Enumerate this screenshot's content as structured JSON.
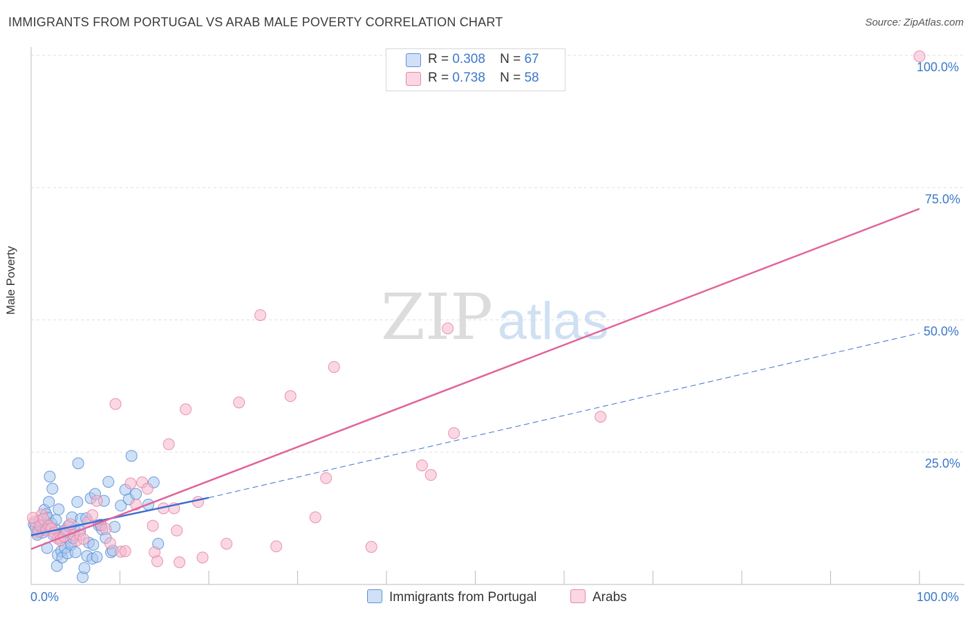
{
  "title": "IMMIGRANTS FROM PORTUGAL VS ARAB MALE POVERTY CORRELATION CHART",
  "source": "Source: ZipAtlas.com",
  "watermark": {
    "zip": "ZIP",
    "atlas": "atlas"
  },
  "legend": {
    "r_label": "R =",
    "n_label": "N =",
    "entries": [
      {
        "r": "0.308",
        "n": "67",
        "color": "#a9c8ef"
      },
      {
        "r": "0.738",
        "n": "58",
        "color": "#f5b7cc"
      }
    ]
  },
  "colors": {
    "blue_fill": "#a9c8ef",
    "blue_stroke": "#5b8fd6",
    "blue_line": "#3a6fd0",
    "pink_fill": "#f5b7cc",
    "pink_stroke": "#e486a6",
    "pink_line": "#e0649a",
    "label_blue": "#3a78c8"
  },
  "chart_data": {
    "type": "scatter",
    "title": "IMMIGRANTS FROM PORTUGAL VS ARAB MALE POVERTY CORRELATION CHART",
    "xlabel": "",
    "ylabel": "Male Poverty",
    "xlim": [
      0,
      100
    ],
    "ylim": [
      0,
      100
    ],
    "x_tick_labels": [
      {
        "value": 0,
        "label": "0.0%"
      },
      {
        "value": 100,
        "label": "100.0%"
      }
    ],
    "y_tick_labels": [
      {
        "value": 25,
        "label": "25.0%"
      },
      {
        "value": 50,
        "label": "50.0%"
      },
      {
        "value": 75,
        "label": "75.0%"
      },
      {
        "value": 100,
        "label": "100.0%"
      }
    ],
    "grid": true,
    "series": [
      {
        "name": "Immigrants from Portugal",
        "R": 0.308,
        "N": 67,
        "trend": {
          "solid": [
            [
              0,
              9.3
            ],
            [
              20,
              16.4
            ]
          ],
          "dashed": [
            [
              20,
              16.4
            ],
            [
              100,
              47.5
            ]
          ]
        },
        "points": [
          [
            0.3,
            11.4
          ],
          [
            0.5,
            10.8
          ],
          [
            0.7,
            9.4
          ],
          [
            0.8,
            10.1
          ],
          [
            1,
            12.1
          ],
          [
            1.2,
            11.2
          ],
          [
            1.3,
            9.8
          ],
          [
            1.5,
            14.1
          ],
          [
            1.6,
            10.5
          ],
          [
            1.7,
            13.3
          ],
          [
            1.8,
            6.9
          ],
          [
            1.9,
            12.6
          ],
          [
            2,
            15.6
          ],
          [
            2.1,
            20.4
          ],
          [
            2.3,
            11.5
          ],
          [
            2.4,
            18.1
          ],
          [
            2.5,
            9.4
          ],
          [
            2.7,
            10.5
          ],
          [
            2.8,
            12.2
          ],
          [
            2.9,
            3.5
          ],
          [
            3,
            5.6
          ],
          [
            3.1,
            14.2
          ],
          [
            3.3,
            8.8
          ],
          [
            3.4,
            6.3
          ],
          [
            3.5,
            5.1
          ],
          [
            3.7,
            10.2
          ],
          [
            3.8,
            6.9
          ],
          [
            3.9,
            9.9
          ],
          [
            4.1,
            5.9
          ],
          [
            4.2,
            11.1
          ],
          [
            4.4,
            8.1
          ],
          [
            4.5,
            7.5
          ],
          [
            4.6,
            12.7
          ],
          [
            4.7,
            8.8
          ],
          [
            4.9,
            10.4
          ],
          [
            5,
            6.1
          ],
          [
            5.2,
            15.6
          ],
          [
            5.3,
            22.9
          ],
          [
            5.5,
            10.1
          ],
          [
            5.6,
            12.4
          ],
          [
            5.8,
            1.4
          ],
          [
            6,
            3.1
          ],
          [
            6.2,
            12.5
          ],
          [
            6.3,
            5.4
          ],
          [
            6.5,
            7.9
          ],
          [
            6.7,
            16.3
          ],
          [
            6.9,
            4.9
          ],
          [
            7,
            7.5
          ],
          [
            7.2,
            17.1
          ],
          [
            7.4,
            5.2
          ],
          [
            7.6,
            11.2
          ],
          [
            7.8,
            11.3
          ],
          [
            8,
            10.4
          ],
          [
            8.2,
            15.8
          ],
          [
            8.4,
            8.8
          ],
          [
            8.7,
            19.4
          ],
          [
            9,
            6.1
          ],
          [
            9.2,
            6.4
          ],
          [
            9.4,
            10.9
          ],
          [
            10.1,
            14.9
          ],
          [
            10.6,
            17.9
          ],
          [
            11,
            16.1
          ],
          [
            11.3,
            24.3
          ],
          [
            11.8,
            17.1
          ],
          [
            13.2,
            15.1
          ],
          [
            13.8,
            19.3
          ],
          [
            14.3,
            7.7
          ]
        ]
      },
      {
        "name": "Arabs",
        "R": 0.738,
        "N": 58,
        "trend": {
          "solid": [
            [
              0,
              6.7
            ],
            [
              100,
              71
            ]
          ]
        },
        "points": [
          [
            0.4,
            11.9
          ],
          [
            0.7,
            9.8
          ],
          [
            1,
            11.1
          ],
          [
            1.2,
            13.2
          ],
          [
            1.4,
            12.4
          ],
          [
            1.7,
            10.2
          ],
          [
            2,
            11.1
          ],
          [
            2.3,
            10.6
          ],
          [
            2.6,
            9.8
          ],
          [
            3,
            8.7
          ],
          [
            3.3,
            8.4
          ],
          [
            3.7,
            9.1
          ],
          [
            4,
            10.4
          ],
          [
            4.4,
            11.4
          ],
          [
            4.8,
            9.3
          ],
          [
            5.1,
            8.3
          ],
          [
            5.5,
            9.4
          ],
          [
            5.9,
            8.6
          ],
          [
            6.4,
            11.8
          ],
          [
            6.9,
            13.1
          ],
          [
            7.4,
            15.8
          ],
          [
            7.9,
            11.2
          ],
          [
            8.4,
            10.5
          ],
          [
            8.9,
            7.8
          ],
          [
            9.5,
            34.1
          ],
          [
            10.1,
            6.2
          ],
          [
            10.6,
            6.3
          ],
          [
            11.2,
            19.1
          ],
          [
            11.8,
            15.1
          ],
          [
            12.5,
            19.3
          ],
          [
            13.1,
            18.1
          ],
          [
            13.7,
            11.1
          ],
          [
            13.9,
            6.1
          ],
          [
            14.2,
            4.4
          ],
          [
            14.9,
            14.4
          ],
          [
            15.5,
            26.5
          ],
          [
            16.1,
            14.4
          ],
          [
            16.4,
            10.2
          ],
          [
            16.7,
            4.2
          ],
          [
            17.4,
            33.1
          ],
          [
            18.8,
            15.6
          ],
          [
            19.3,
            5.1
          ],
          [
            22,
            7.7
          ],
          [
            23.4,
            34.4
          ],
          [
            25.8,
            50.9
          ],
          [
            27.6,
            7.2
          ],
          [
            29.2,
            35.6
          ],
          [
            32,
            12.7
          ],
          [
            33.2,
            20.1
          ],
          [
            34.1,
            41.1
          ],
          [
            38.3,
            7.1
          ],
          [
            44,
            22.5
          ],
          [
            45,
            20.7
          ],
          [
            46.9,
            48.4
          ],
          [
            47.6,
            28.6
          ],
          [
            64.1,
            31.7
          ],
          [
            100,
            99.8
          ],
          [
            0.2,
            12.6
          ]
        ]
      }
    ]
  },
  "bottom_legend": [
    {
      "label": "Immigrants from Portugal",
      "color": "#a9c8ef"
    },
    {
      "label": "Arabs",
      "color": "#f5b7cc"
    }
  ]
}
